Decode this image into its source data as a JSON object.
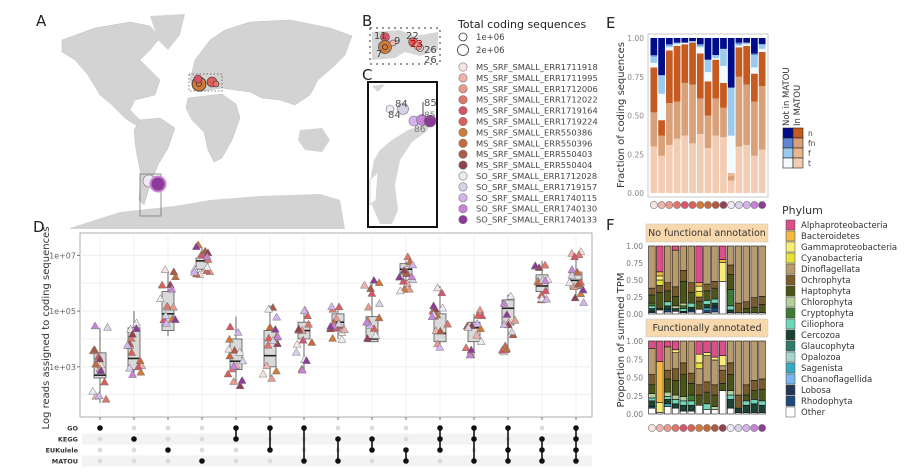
{
  "panels": {
    "A": {
      "letter": "A"
    },
    "B": {
      "letter": "B",
      "labels": [
        "11",
        "9",
        "7",
        "22",
        "23",
        "26",
        "26"
      ]
    },
    "C": {
      "letter": "C",
      "labels": [
        "84",
        "84",
        "85",
        "85",
        "86"
      ]
    },
    "D": {
      "letter": "D"
    },
    "E": {
      "letter": "E"
    },
    "F": {
      "letter": "F"
    }
  },
  "size_legend": {
    "title": "Total coding sequences",
    "entries": [
      "1e+06",
      "2e+06"
    ]
  },
  "sample_legend": {
    "entries": [
      {
        "label": "MS_SRF_SMALL_ERR1711918",
        "color": "#f7e3e1"
      },
      {
        "label": "MS_SRF_SMALL_ERR1711995",
        "color": "#eeb3ad"
      },
      {
        "label": "MS_SRF_SMALL_ERR1712006",
        "color": "#e99a8a"
      },
      {
        "label": "MS_SRF_SMALL_ERR1712022",
        "color": "#e0766a"
      },
      {
        "label": "MS_SRF_SMALL_ERR1719164",
        "color": "#d9546a"
      },
      {
        "label": "MS_SRF_SMALL_ERR1719224",
        "color": "#dc5f5a"
      },
      {
        "label": "MS_SRF_SMALL_ERR550386",
        "color": "#d27a3a"
      },
      {
        "label": "MS_SRF_SMALL_ERR550396",
        "color": "#c56a3a"
      },
      {
        "label": "MS_SRF_SMALL_ERR550403",
        "color": "#ad5a45"
      },
      {
        "label": "MS_SRF_SMALL_ERR550404",
        "color": "#93404f"
      },
      {
        "label": "SO_SRF_SMALL_ERR1712028",
        "color": "#ecebf4"
      },
      {
        "label": "SO_SRF_SMALL_ERR1719157",
        "color": "#d6d2e8"
      },
      {
        "label": "SO_SRF_SMALL_ERR1740115",
        "color": "#d4b3ef"
      },
      {
        "label": "SO_SRF_SMALL_ERR1740130",
        "color": "#c983d8"
      },
      {
        "label": "SO_SRF_SMALL_ERR1740133",
        "color": "#8d3a98"
      }
    ]
  },
  "chart_data": [
    {
      "panel": "D",
      "type": "box",
      "title": "",
      "ylabel": "Log reads assigned to coding sequences",
      "yscale": "log10",
      "ylim_log10": [
        1.2,
        7.8
      ],
      "yticks": [
        "1e+03",
        "1e+05",
        "1e+07"
      ],
      "ytick_values_log10": [
        3,
        5,
        7
      ],
      "grid": true,
      "sets": [
        "GO",
        "KEGG",
        "EUKulele",
        "MATOU"
      ],
      "intersections": [
        {
          "members": [
            "GO"
          ],
          "q1": 2.6,
          "median": 2.7,
          "q3": 3.5,
          "whisker_low": 1.7,
          "whisker_high": 4.4
        },
        {
          "members": [
            "KEGG"
          ],
          "q1": 2.9,
          "median": 3.3,
          "q3": 4.4,
          "whisker_low": 2.7,
          "whisker_high": 5.0
        },
        {
          "members": [
            "EUKulele"
          ],
          "q1": 4.3,
          "median": 4.9,
          "q3": 5.7,
          "whisker_low": 4.1,
          "whisker_high": 6.4
        },
        {
          "members": [
            "MATOU"
          ],
          "q1": 6.5,
          "median": 6.8,
          "q3": 6.9,
          "whisker_low": 6.4,
          "whisker_high": 7.3
        },
        {
          "members": [
            "GO",
            "KEGG"
          ],
          "q1": 2.9,
          "median": 3.2,
          "q3": 4.0,
          "whisker_low": 2.4,
          "whisker_high": 4.8
        },
        {
          "members": [
            "GO",
            "EUKulele"
          ],
          "q1": 3.0,
          "median": 3.4,
          "q3": 4.3,
          "whisker_low": 2.6,
          "whisker_high": 5.2
        },
        {
          "members": [
            "GO",
            "MATOU"
          ],
          "q1": 4.0,
          "median": 4.3,
          "q3": 4.6,
          "whisker_low": 2.9,
          "whisker_high": 4.9
        },
        {
          "members": [
            "KEGG",
            "MATOU"
          ],
          "q1": 4.4,
          "median": 4.6,
          "q3": 4.9,
          "whisker_low": 4.0,
          "whisker_high": 5.1
        },
        {
          "members": [
            "KEGG",
            "EUKulele"
          ],
          "q1": 3.9,
          "median": 4.0,
          "q3": 4.8,
          "whisker_low": 3.9,
          "whisker_high": 6.1
        },
        {
          "members": [
            "EUKulele",
            "MATOU"
          ],
          "q1": 6.3,
          "median": 6.5,
          "q3": 6.7,
          "whisker_low": 5.7,
          "whisker_high": 6.8
        },
        {
          "members": [
            "GO",
            "KEGG",
            "EUKulele"
          ],
          "q1": 3.9,
          "median": 4.2,
          "q3": 4.9,
          "whisker_low": 3.8,
          "whisker_high": 5.9
        },
        {
          "members": [
            "GO",
            "KEGG",
            "MATOU"
          ],
          "q1": 3.9,
          "median": 4.4,
          "q3": 4.6,
          "whisker_low": 3.5,
          "whisker_high": 4.9
        },
        {
          "members": [
            "GO",
            "EUKulele",
            "MATOU"
          ],
          "q1": 4.5,
          "median": 5.1,
          "q3": 5.4,
          "whisker_low": 3.5,
          "whisker_high": 5.6
        },
        {
          "members": [
            "KEGG",
            "EUKulele",
            "MATOU"
          ],
          "q1": 5.7,
          "median": 5.9,
          "q3": 6.3,
          "whisker_low": 5.5,
          "whisker_high": 6.8
        },
        {
          "members": [
            "GO",
            "KEGG",
            "EUKulele",
            "MATOU"
          ],
          "q1": 5.8,
          "median": 6.1,
          "q3": 6.4,
          "whisker_low": 5.4,
          "whisker_high": 7.0
        }
      ]
    },
    {
      "panel": "E",
      "type": "bar",
      "stacked": true,
      "ylabel": "Fraction of coding sequences",
      "ylim": [
        0,
        1
      ],
      "yticks": [
        "0.00",
        "0.25",
        "0.50",
        "0.75",
        "1.00"
      ],
      "legend_title_groups": [
        "Not in MATOU",
        "In MATOU"
      ],
      "legend_rows": [
        "n",
        "fn",
        "f",
        "t"
      ],
      "series": [
        {
          "name": "In MATOU t",
          "color": "#f2cdb4",
          "values": [
            0.3,
            0.24,
            0.31,
            0.35,
            0.37,
            0.32,
            0.38,
            0.29,
            0.37,
            0.36,
            0.08,
            0.3,
            0.31,
            0.24,
            0.28
          ]
        },
        {
          "name": "In MATOU f",
          "color": "#d9a17a",
          "values": [
            0.22,
            0.13,
            0.27,
            0.24,
            0.34,
            0.38,
            0.23,
            0.21,
            0.24,
            0.19,
            0.03,
            0.45,
            0.39,
            0.35,
            0.41
          ]
        },
        {
          "name": "In MATOU fn",
          "color": "#e7b68e",
          "values": [
            0.0,
            0.0,
            0.0,
            0.0,
            0.0,
            0.0,
            0.0,
            0.0,
            0.0,
            0.0,
            0.02,
            0.0,
            0.0,
            0.0,
            0.0
          ]
        },
        {
          "name": "In MATOU n",
          "color": "#c55b20",
          "values": [
            0.29,
            0.1,
            0.34,
            0.36,
            0.25,
            0.27,
            0.29,
            0.22,
            0.25,
            0.16,
            0.0,
            0.19,
            0.25,
            0.18,
            0.22
          ]
        },
        {
          "name": "Not in MATOU t",
          "color": "#f3fbff",
          "values": [
            0.03,
            0.17,
            0.02,
            0.01,
            0.01,
            0.0,
            0.04,
            0.06,
            0.01,
            0.11,
            0.24,
            0.01,
            0.01,
            0.04,
            0.02
          ]
        },
        {
          "name": "Not in MATOU f",
          "color": "#9acbee",
          "values": [
            0.04,
            0.12,
            0.01,
            0.01,
            0.0,
            0.01,
            0.01,
            0.08,
            0.02,
            0.11,
            0.31,
            0.01,
            0.01,
            0.08,
            0.03
          ]
        },
        {
          "name": "Not in MATOU fn",
          "color": "#5f86d6",
          "values": [
            0.01,
            0.0,
            0.01,
            0.0,
            0.0,
            0.0,
            0.01,
            0.0,
            0.0,
            0.0,
            0.0,
            0.01,
            0.0,
            0.01,
            0.0
          ]
        },
        {
          "name": "Not in MATOU n",
          "color": "#000d8a",
          "values": [
            0.11,
            0.24,
            0.04,
            0.03,
            0.03,
            0.02,
            0.04,
            0.14,
            0.11,
            0.07,
            0.32,
            0.03,
            0.03,
            0.1,
            0.04
          ]
        }
      ]
    },
    {
      "panel": "F",
      "type": "bar",
      "stacked": true,
      "ylabel": "Proportion of summed TPM",
      "ylim": [
        0,
        1
      ],
      "yticks": [
        "0.00",
        "0.25",
        "0.50",
        "0.75",
        "1.00"
      ],
      "facets": [
        "No functional annotation",
        "Functionally annotated"
      ],
      "legend_title": "Phylum",
      "phyla": [
        {
          "name": "Alphaproteobacteria",
          "color": "#dc4f86"
        },
        {
          "name": "Bacteroidetes",
          "color": "#f3b843"
        },
        {
          "name": "Gammaproteobacteria",
          "color": "#f7ec76"
        },
        {
          "name": "Cyanobacteria",
          "color": "#e8df3a"
        },
        {
          "name": "Dinoflagellata",
          "color": "#b89a6c"
        },
        {
          "name": "Ochrophyta",
          "color": "#7a5c2c"
        },
        {
          "name": "Haptophyta",
          "color": "#4c5419"
        },
        {
          "name": "Chlorophyta",
          "color": "#b5cf9a"
        },
        {
          "name": "Cryptophyta",
          "color": "#3e7a33"
        },
        {
          "name": "Ciliophora",
          "color": "#70d6b8"
        },
        {
          "name": "Cercozoa",
          "color": "#1a4431"
        },
        {
          "name": "Glaucophyta",
          "color": "#2c7b6b"
        },
        {
          "name": "Opalozoa",
          "color": "#a8d3cd"
        },
        {
          "name": "Sagenista",
          "color": "#3aa9c6"
        },
        {
          "name": "Choanoflagellida",
          "color": "#78b5ee"
        },
        {
          "name": "Lobosa",
          "color": "#253759"
        },
        {
          "name": "Rhodophyta",
          "color": "#1c4b7b"
        },
        {
          "name": "Other",
          "color": "#ffffff"
        }
      ],
      "facet_series": [
        {
          "facet": "No functional annotation",
          "bars": [
            {
              "Other": 0.02,
              "Ochrophyta": 0.1,
              "Haptophyta": 0.12,
              "Dinoflagellata": 0.62,
              "Cryptophyta": 0.04,
              "Ciliophora": 0.04,
              "Cercozoa": 0.04,
              "Rhodophyta": 0.02
            },
            {
              "Other": 0.06,
              "Ochrophyta": 0.1,
              "Haptophyta": 0.24,
              "Cyanobacteria": 0.08,
              "Gammaproteobacteria": 0.06,
              "Bacteroidetes": 0.06,
              "Alphaproteobacteria": 0.38,
              "Cercozoa": 0.02
            },
            {
              "Other": 0.03,
              "Ochrophyta": 0.12,
              "Haptophyta": 0.16,
              "Dinoflagellata": 0.54,
              "Ciliophora": 0.06,
              "Cercozoa": 0.05,
              "Rhodophyta": 0.04
            },
            {
              "Other": 0.04,
              "Ochrophyta": 0.14,
              "Haptophyta": 0.14,
              "Dinoflagellata": 0.54,
              "Chlorophyta": 0.04,
              "Alphaproteobacteria": 0.06,
              "Cercozoa": 0.04
            },
            {
              "Other": 0.02,
              "Ochrophyta": 0.16,
              "Haptophyta": 0.32,
              "Dinoflagellata": 0.36,
              "Cryptophyta": 0.04,
              "Ciliophora": 0.04,
              "Chlorophyta": 0.04,
              "Cercozoa": 0.02
            },
            {
              "Other": 0.03,
              "Ochrophyta": 0.14,
              "Haptophyta": 0.16,
              "Dinoflagellata": 0.54,
              "Ciliophora": 0.06,
              "Cercozoa": 0.04,
              "Rhodophyta": 0.03
            },
            {
              "Other": 0.07,
              "Ochrophyta": 0.06,
              "Haptophyta": 0.12,
              "Gammaproteobacteria": 0.08,
              "Cyanobacteria": 0.08,
              "Bacteroidetes": 0.05,
              "Alphaproteobacteria": 0.54
            },
            {
              "Other": 0.02,
              "Ochrophyta": 0.1,
              "Sagenista": 0.04,
              "Haptophyta": 0.14,
              "Dinoflagellata": 0.56,
              "Ciliophora": 0.06,
              "Cercozoa": 0.05,
              "Rhodophyta": 0.03
            },
            {
              "Other": 0.03,
              "Ochrophyta": 0.1,
              "Rhodophyta": 0.06,
              "Haptophyta": 0.16,
              "Dinoflagellata": 0.52,
              "Ciliophora": 0.06,
              "Cercozoa": 0.04,
              "Lobosa": 0.03
            },
            {
              "Other": 0.48,
              "Gammaproteobacteria": 0.28,
              "Bacteroidetes": 0.04,
              "Alphaproteobacteria": 0.2
            },
            {
              "Other": 0.02,
              "Ochrophyta": 0.14,
              "Haptophyta": 0.22,
              "Cryptophyta": 0.24,
              "Dinoflagellata": 0.28,
              "Ciliophora": 0.06,
              "Cercozoa": 0.04
            },
            {
              "Other": 0.02,
              "Ochrophyta": 0.14,
              "Dinoflagellata": 0.84
            },
            {
              "Other": 0.02,
              "Ochrophyta": 0.1,
              "Haptophyta": 0.06,
              "Dinoflagellata": 0.82
            },
            {
              "Other": 0.02,
              "Ochrophyta": 0.14,
              "Haptophyta": 0.08,
              "Dinoflagellata": 0.76
            },
            {
              "Other": 0.02,
              "Ochrophyta": 0.12,
              "Haptophyta": 0.12,
              "Dinoflagellata": 0.74
            }
          ]
        },
        {
          "facet": "Functionally annotated",
          "bars": [
            {
              "Other": 0.08,
              "Rhodophyta": 0.02,
              "Ochrophyta": 0.14,
              "Haptophyta": 0.12,
              "Dinoflagellata": 0.36,
              "Chlorophyta": 0.06,
              "Ciliophora": 0.04,
              "Cercozoa": 0.08,
              "Alphaproteobacteria": 0.1
            },
            {
              "Other": 0.02,
              "Gammaproteobacteria": 0.14,
              "Bacteroidetes": 0.56,
              "Alphaproteobacteria": 0.28
            },
            {
              "Other": 0.1,
              "Sagenista": 0.04,
              "Ochrophyta": 0.12,
              "Haptophyta": 0.18,
              "Dinoflagellata": 0.32,
              "Ciliophora": 0.04,
              "Chlorophyta": 0.06,
              "Cercozoa": 0.06,
              "Alphaproteobacteria": 0.08
            },
            {
              "Other": 0.08,
              "Ochrophyta": 0.16,
              "Haptophyta": 0.2,
              "Gammaproteobacteria": 0.04,
              "Dinoflagellata": 0.22,
              "Ciliophora": 0.06,
              "Chlorophyta": 0.06,
              "Cercozoa": 0.06,
              "Alphaproteobacteria": 0.12
            },
            {
              "Other": 0.04,
              "Ochrophyta": 0.16,
              "Haptophyta": 0.3,
              "Dinoflagellata": 0.3,
              "Ciliophora": 0.06,
              "Chlorophyta": 0.06,
              "Cercozoa": 0.08
            },
            {
              "Other": 0.04,
              "Ochrophyta": 0.14,
              "Haptophyta": 0.16,
              "Dinoflagellata": 0.44,
              "Cryptophyta": 0.08,
              "Ciliophora": 0.06,
              "Cercozoa": 0.08
            },
            {
              "Other": 0.12,
              "Ochrophyta": 0.14,
              "Haptophyta": 0.14,
              "Gammaproteobacteria": 0.12,
              "Cyanobacteria": 0.08,
              "Dinoflagellata": 0.22,
              "Alphaproteobacteria": 0.18
            },
            {
              "Other": 0.06,
              "Ochrophyta": 0.14,
              "Haptophyta": 0.16,
              "Gammaproteobacteria": 0.04,
              "Dinoflagellata": 0.36,
              "Ciliophora": 0.08,
              "Alphaproteobacteria": 0.16
            },
            {
              "Other": 0.06,
              "Ochrophyta": 0.14,
              "Haptophyta": 0.16,
              "Gammaproteobacteria": 0.04,
              "Dinoflagellata": 0.34,
              "Chlorophyta": 0.04,
              "Alphaproteobacteria": 0.22
            },
            {
              "Other": 0.32,
              "Ochrophyta": 0.18,
              "Haptophyta": 0.1,
              "Gammaproteobacteria": 0.14,
              "Dinoflagellata": 0.06,
              "Alphaproteobacteria": 0.2
            },
            {
              "Other": 0.08,
              "Ochrophyta": 0.16,
              "Haptophyta": 0.22,
              "Dinoflagellata": 0.3,
              "Ciliophora": 0.06,
              "Chlorophyta": 0.06,
              "Cercozoa": 0.12
            },
            {
              "Other": 0.02,
              "Ochrophyta": 0.18,
              "Dinoflagellata": 0.74,
              "Cercozoa": 0.06
            },
            {
              "Other": 0.02,
              "Ochrophyta": 0.14,
              "Haptophyta": 0.08,
              "Dinoflagellata": 0.6,
              "Ciliophora": 0.06,
              "Cercozoa": 0.1
            },
            {
              "Other": 0.02,
              "Ochrophyta": 0.14,
              "Haptophyta": 0.12,
              "Dinoflagellata": 0.54,
              "Ciliophora": 0.06,
              "Cercozoa": 0.12
            },
            {
              "Other": 0.02,
              "Ochrophyta": 0.14,
              "Haptophyta": 0.16,
              "Dinoflagellata": 0.52,
              "Ciliophora": 0.06,
              "Cercozoa": 0.1
            }
          ]
        }
      ]
    }
  ]
}
